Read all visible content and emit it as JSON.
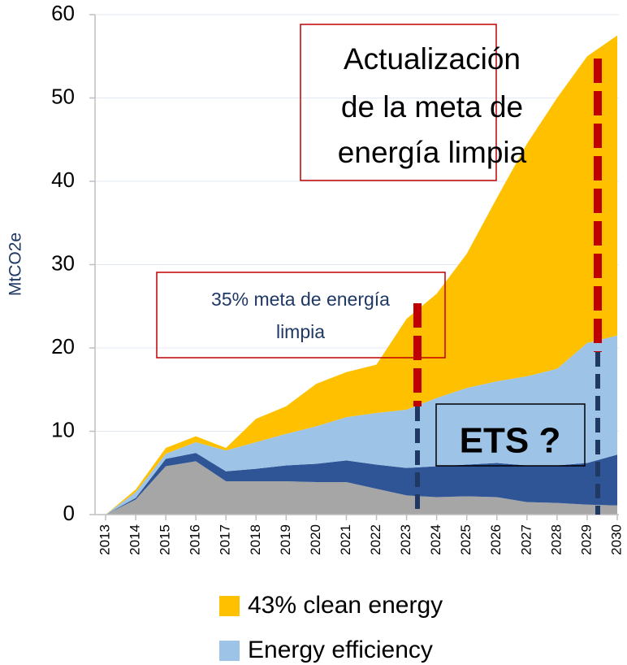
{
  "chart_data": {
    "type": "stacked-area",
    "y_label": "MtCO2e",
    "categories": [
      "2013",
      "2014",
      "2015",
      "2016",
      "2017",
      "2018",
      "2019",
      "2020",
      "2021",
      "2022",
      "2023",
      "2024",
      "2025",
      "2026",
      "2027",
      "2028",
      "2029",
      "2030"
    ],
    "series": [
      {
        "color": "#a6a6a6",
        "values": [
          0,
          1.8,
          5.8,
          6.4,
          4.0,
          4.0,
          4.0,
          3.9,
          3.9,
          3.1,
          2.3,
          2.1,
          2.2,
          2.1,
          1.5,
          1.4,
          1.2,
          1.1
        ]
      },
      {
        "color": "#2f5597",
        "values": [
          0,
          0.2,
          0.9,
          1.0,
          1.2,
          1.5,
          1.9,
          2.2,
          2.6,
          2.9,
          3.3,
          3.7,
          3.8,
          4.1,
          4.4,
          4.5,
          5.0,
          6.1
        ]
      },
      {
        "name": "Energy efficiency",
        "color": "#9dc3e6",
        "values": [
          0,
          0.7,
          0.6,
          1.3,
          2.5,
          3.2,
          3.8,
          4.5,
          5.2,
          6.2,
          7.0,
          8.2,
          9.2,
          9.8,
          10.7,
          11.6,
          14.4,
          14.3
        ]
      },
      {
        "name": "43% clean energy",
        "color": "#ffc000",
        "values": [
          0,
          0.3,
          0.7,
          0.7,
          0.3,
          2.8,
          3.3,
          5.1,
          5.4,
          5.8,
          10.9,
          12.5,
          16.1,
          22.0,
          27.9,
          32.5,
          34.4,
          36.0
        ]
      }
    ],
    "ylim": [
      0,
      60
    ],
    "yticks": [
      0,
      10,
      20,
      30,
      40,
      50,
      60
    ],
    "grid": true,
    "annotations": {
      "update_box": [
        "Actualización",
        "de la meta de",
        "energía limpia"
      ],
      "target_box": [
        "35% meta de energía",
        "limpia"
      ],
      "ets_box": "ETS ?"
    }
  }
}
